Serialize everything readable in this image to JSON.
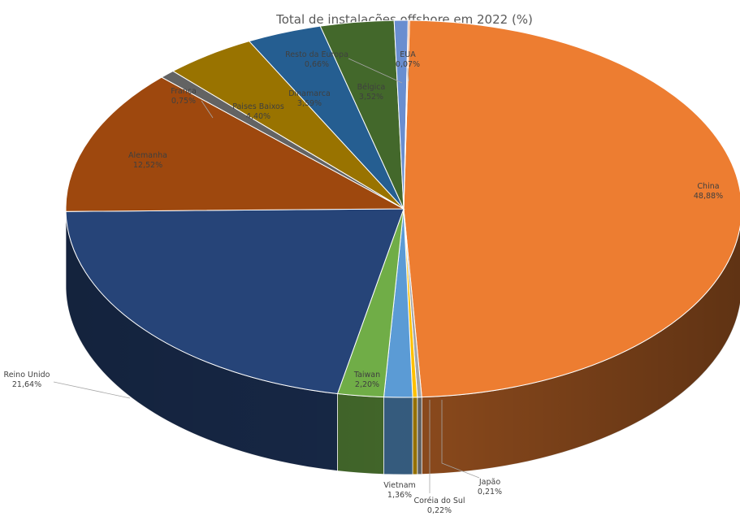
{
  "chart_data": {
    "type": "pie",
    "style": "3d",
    "title": "Total de instalações offshore em 2022 (%)",
    "unit": "%",
    "slices": [
      {
        "name": "China",
        "value": 48.88,
        "label": "48,88%",
        "color": "#ED7D31"
      },
      {
        "name": "Japão",
        "value": 0.21,
        "label": "0,21%",
        "color": "#A5A5A5"
      },
      {
        "name": "Coréia do Sul",
        "value": 0.22,
        "label": "0,22%",
        "color": "#FFC000"
      },
      {
        "name": "Vietnam",
        "value": 1.36,
        "label": "1,36%",
        "color": "#5B9BD5"
      },
      {
        "name": "Taiwan",
        "value": 2.2,
        "label": "2,20%",
        "color": "#70AD47"
      },
      {
        "name": "Reino Unido",
        "value": 21.64,
        "label": "21,64%",
        "color": "#264478"
      },
      {
        "name": "Alemanha",
        "value": 12.52,
        "label": "12,52%",
        "color": "#9E480E"
      },
      {
        "name": "França",
        "value": 0.75,
        "label": "0,75%",
        "color": "#636363"
      },
      {
        "name": "Paises Baixos",
        "value": 4.4,
        "label": "4,40%",
        "color": "#997300"
      },
      {
        "name": "Dinamarca",
        "value": 3.59,
        "label": "3,59%",
        "color": "#255E91"
      },
      {
        "name": "Bélgica",
        "value": 3.52,
        "label": "3,52%",
        "color": "#43682B"
      },
      {
        "name": "Resto da Europa",
        "value": 0.66,
        "label": "0,66%",
        "color": "#698ED0"
      },
      {
        "name": "EUA",
        "value": 0.07,
        "label": "0,07%",
        "color": "#F1975A"
      }
    ]
  }
}
